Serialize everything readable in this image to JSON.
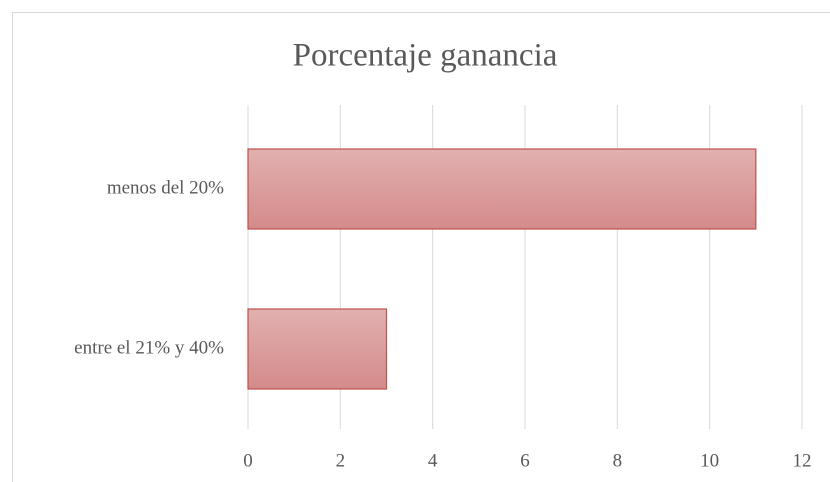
{
  "chart_data": {
    "type": "bar",
    "orientation": "horizontal",
    "title": "Porcentaje ganancia",
    "categories": [
      "menos del 20%",
      "entre el 21% y 40%"
    ],
    "values": [
      11,
      3
    ],
    "color": "#d99594",
    "edge_color": "#c0504d",
    "xlim": [
      0,
      12
    ],
    "xticks": [
      0,
      2,
      4,
      6,
      8,
      10,
      12
    ],
    "grid": true
  }
}
